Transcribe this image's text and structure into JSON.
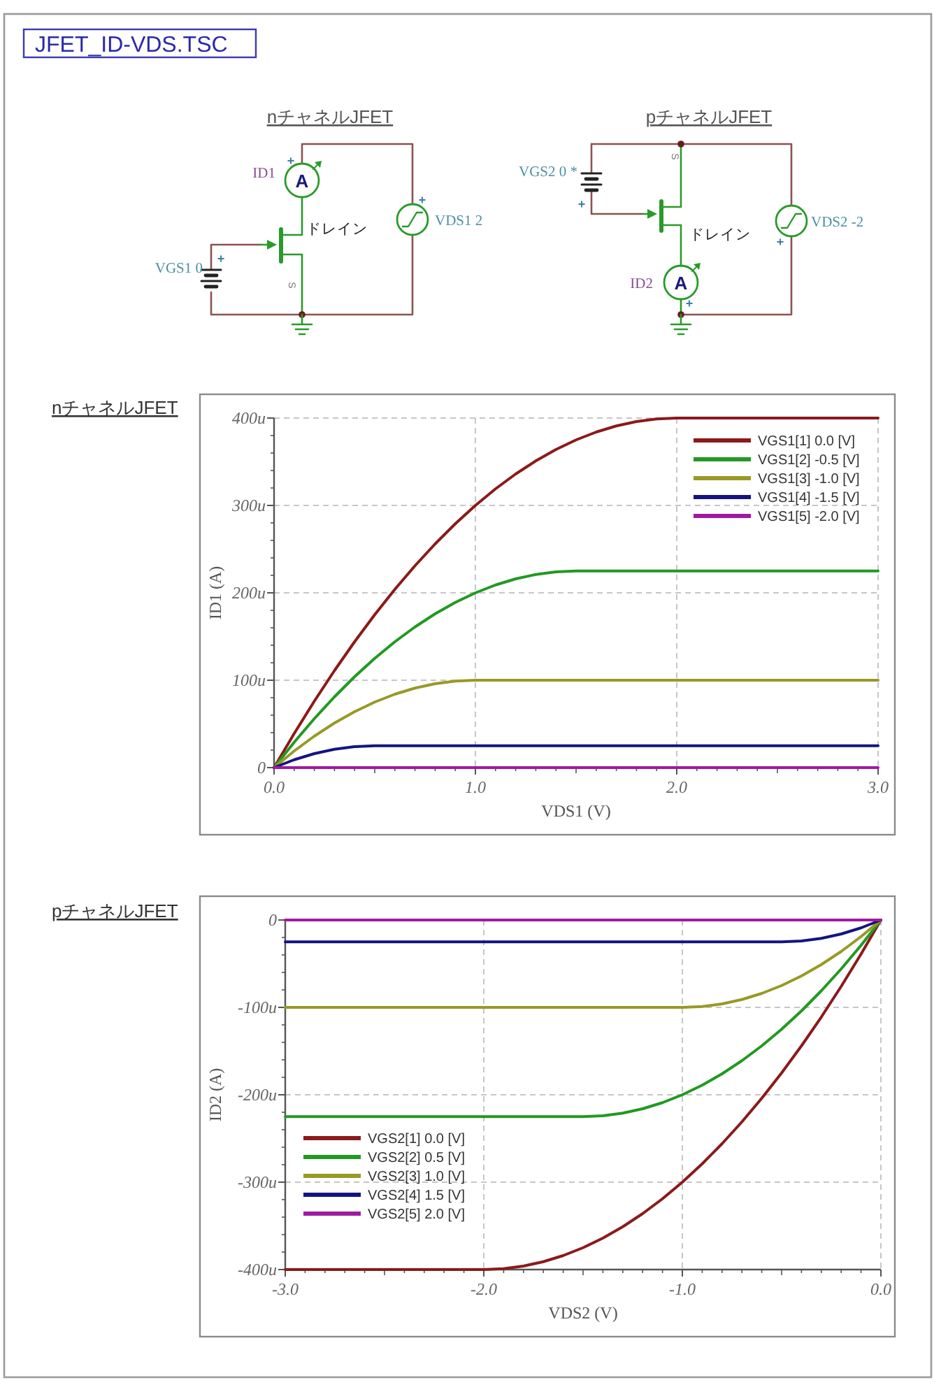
{
  "chart_data": [
    {
      "type": "other",
      "title": "JFET_ID-VDS.TSC"
    },
    {
      "type": "other",
      "title": "nチャネルJFET",
      "annotations": [
        "ID1",
        "+",
        "A",
        "ドレイン",
        "VGS1 0",
        "+",
        "S",
        "VDS1 2",
        "+"
      ]
    },
    {
      "type": "other",
      "title": "pチャネルJFET",
      "annotations": [
        "VGS2 0 *",
        "+",
        "S",
        "ドレイン",
        "VDS2 -2",
        "+",
        "ID2",
        "A",
        "+"
      ]
    },
    {
      "type": "line",
      "title": "nチャネルJFET",
      "xlabel": "VDS1 (V)",
      "ylabel": "ID1 (A)",
      "xlim": [
        0,
        3
      ],
      "ylim": [
        0,
        400
      ],
      "xticks": [
        {
          "value": 0,
          "label": "0.0"
        },
        {
          "value": 1,
          "label": "1.0"
        },
        {
          "value": 2,
          "label": "2.0"
        },
        {
          "value": 3,
          "label": "3.0"
        }
      ],
      "yticks": [
        0,
        {
          "value": 100,
          "label": "100u"
        },
        {
          "value": 200,
          "label": "200u"
        },
        {
          "value": 300,
          "label": "300u"
        },
        {
          "value": 400,
          "label": "400u"
        }
      ],
      "grid": true,
      "legend": "top right",
      "series": [
        {
          "name": "VGS1[1] 0.0 [V]",
          "color": "#8b1a1a",
          "x": [
            0,
            0.1,
            0.2,
            0.3,
            0.4,
            0.5,
            0.6,
            0.7,
            0.8,
            0.9,
            1.0,
            1.1,
            1.2,
            1.3,
            1.4,
            1.5,
            1.6,
            1.7,
            1.8,
            1.9,
            2.0,
            3.0
          ],
          "values": [
            0,
            39,
            76,
            111,
            144,
            175,
            204,
            231,
            256,
            279,
            300,
            319,
            336,
            351,
            364,
            375,
            384,
            391,
            396,
            399,
            400,
            400
          ]
        },
        {
          "name": "VGS1[2] -0.5 [V]",
          "color": "#229922",
          "x": [
            0,
            0.1,
            0.2,
            0.3,
            0.4,
            0.5,
            0.6,
            0.7,
            0.8,
            0.9,
            1.0,
            1.1,
            1.2,
            1.3,
            1.4,
            1.5,
            3.0
          ],
          "values": [
            0,
            29,
            56,
            81,
            104,
            125,
            144,
            161,
            176,
            189,
            200,
            209,
            216,
            221,
            224,
            225,
            225
          ]
        },
        {
          "name": "VGS1[3] -1.0 [V]",
          "color": "#999926",
          "x": [
            0,
            0.1,
            0.2,
            0.3,
            0.4,
            0.5,
            0.6,
            0.7,
            0.8,
            0.9,
            1.0,
            3.0
          ],
          "values": [
            0,
            19,
            36,
            51,
            64,
            75,
            84,
            91,
            96,
            99,
            100,
            100
          ]
        },
        {
          "name": "VGS1[4] -1.5 [V]",
          "color": "#141480",
          "x": [
            0,
            0.1,
            0.2,
            0.3,
            0.4,
            0.5,
            3.0
          ],
          "values": [
            0,
            9,
            16,
            21,
            24,
            25,
            25
          ]
        },
        {
          "name": "VGS1[5] -2.0 [V]",
          "color": "#a01aa0",
          "x": [
            0,
            3.0
          ],
          "values": [
            0,
            0
          ]
        }
      ]
    },
    {
      "type": "line",
      "title": "pチャネルJFET",
      "xlabel": "VDS2 (V)",
      "ylabel": "ID2 (A)",
      "xlim": [
        -3,
        0
      ],
      "ylim": [
        -400,
        0
      ],
      "xticks": [
        {
          "value": -3,
          "label": "-3.0"
        },
        {
          "value": -2,
          "label": "-2.0"
        },
        {
          "value": -1,
          "label": "-1.0"
        },
        {
          "value": 0,
          "label": "0.0"
        }
      ],
      "yticks": [
        {
          "value": -400,
          "label": "-400u"
        },
        {
          "value": -300,
          "label": "-300u"
        },
        {
          "value": -200,
          "label": "-200u"
        },
        {
          "value": -100,
          "label": "-100u"
        },
        0
      ],
      "grid": true,
      "legend": "bottom left",
      "series": [
        {
          "name": "VGS2[1] 0.0 [V]",
          "color": "#8b1a1a",
          "x": [
            -3.0,
            -2.0,
            -1.9,
            -1.8,
            -1.7,
            -1.6,
            -1.5,
            -1.4,
            -1.3,
            -1.2,
            -1.1,
            -1.0,
            -0.9,
            -0.8,
            -0.7,
            -0.6,
            -0.5,
            -0.4,
            -0.3,
            -0.2,
            -0.1,
            0
          ],
          "values": [
            -400,
            -400,
            -399,
            -396,
            -391,
            -384,
            -375,
            -364,
            -351,
            -336,
            -319,
            -300,
            -279,
            -256,
            -231,
            -204,
            -175,
            -144,
            -111,
            -76,
            -39,
            0
          ]
        },
        {
          "name": "VGS2[2] 0.5 [V]",
          "color": "#229922",
          "x": [
            -3.0,
            -1.5,
            -1.4,
            -1.3,
            -1.2,
            -1.1,
            -1.0,
            -0.9,
            -0.8,
            -0.7,
            -0.6,
            -0.5,
            -0.4,
            -0.3,
            -0.2,
            -0.1,
            0
          ],
          "values": [
            -225,
            -225,
            -224,
            -221,
            -216,
            -209,
            -200,
            -189,
            -176,
            -161,
            -144,
            -125,
            -104,
            -81,
            -56,
            -29,
            0
          ]
        },
        {
          "name": "VGS2[3] 1.0 [V]",
          "color": "#999926",
          "x": [
            -3.0,
            -1.0,
            -0.9,
            -0.8,
            -0.7,
            -0.6,
            -0.5,
            -0.4,
            -0.3,
            -0.2,
            -0.1,
            0
          ],
          "values": [
            -100,
            -100,
            -99,
            -96,
            -91,
            -84,
            -75,
            -64,
            -51,
            -36,
            -19,
            0
          ]
        },
        {
          "name": "VGS2[4] 1.5 [V]",
          "color": "#141480",
          "x": [
            -3.0,
            -0.5,
            -0.4,
            -0.3,
            -0.2,
            -0.1,
            0
          ],
          "values": [
            -25,
            -25,
            -24,
            -21,
            -16,
            -9,
            0
          ]
        },
        {
          "name": "VGS2[5] 2.0 [V]",
          "color": "#a01aa0",
          "x": [
            -3.0,
            0
          ],
          "values": [
            0,
            0
          ]
        }
      ]
    }
  ]
}
